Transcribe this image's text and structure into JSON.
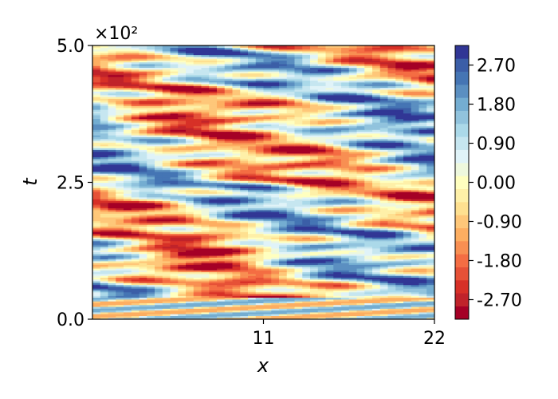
{
  "chart_data": {
    "type": "heatmap",
    "title": "",
    "xlabel": "x",
    "ylabel": "t",
    "xlim": [
      0,
      22
    ],
    "ylim": [
      0,
      500
    ],
    "x_ticks": [
      {
        "value": 11,
        "label": "11"
      },
      {
        "value": 22,
        "label": "22"
      }
    ],
    "y_ticks": [
      {
        "value": 0,
        "label": "0.0"
      },
      {
        "value": 250,
        "label": "2.5"
      },
      {
        "value": 500,
        "label": "5.0"
      }
    ],
    "y_scale_factor": "×10²",
    "colorbar": {
      "min": -3.15,
      "max": 3.15,
      "levels": 21,
      "colormap": "RdYlBu",
      "ticks": [
        {
          "value": 2.7,
          "label": "2.70"
        },
        {
          "value": 1.8,
          "label": "1.80"
        },
        {
          "value": 0.9,
          "label": "0.90"
        },
        {
          "value": 0.0,
          "label": "0.00"
        },
        {
          "value": -0.9,
          "label": "-0.90"
        },
        {
          "value": -1.8,
          "label": "-1.80"
        },
        {
          "value": -2.7,
          "label": "-2.70"
        }
      ],
      "colors": [
        "#a50026",
        "#c0232a",
        "#d73027",
        "#e65137",
        "#f46d43",
        "#f88f52",
        "#fdae61",
        "#fec779",
        "#fee090",
        "#fef0a8",
        "#ffffbf",
        "#eef8dd",
        "#e0f3f8",
        "#c6e6f0",
        "#abd9e9",
        "#91c3dd",
        "#74add1",
        "#5b8fc1",
        "#4575b4",
        "#3b5ea7",
        "#313695"
      ]
    }
  }
}
